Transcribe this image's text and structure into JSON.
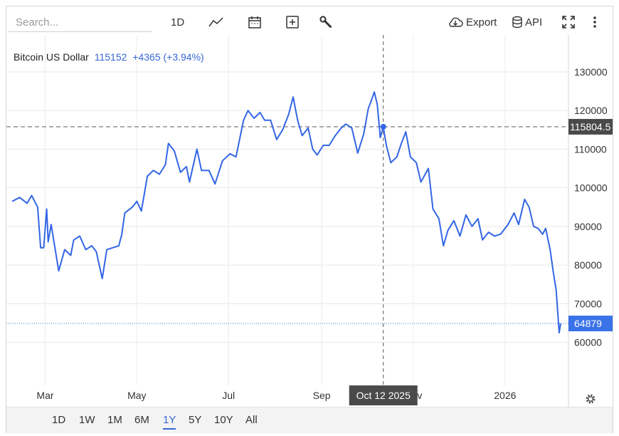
{
  "toolbar": {
    "search_placeholder": "Search...",
    "interval_label": "1D",
    "export_label": "Export",
    "api_label": "API"
  },
  "legend": {
    "name": "Bitcoin US Dollar",
    "price": "115152",
    "change": "+4365 (+3.94%)"
  },
  "crosshair": {
    "date_label": "Oct 12 2025",
    "price_label": "115804.5"
  },
  "last_price_label": "64879",
  "range_buttons": [
    {
      "label": "1D",
      "active": false
    },
    {
      "label": "1W",
      "active": false
    },
    {
      "label": "1M",
      "active": false
    },
    {
      "label": "6M",
      "active": false
    },
    {
      "label": "1Y",
      "active": true
    },
    {
      "label": "5Y",
      "active": false
    },
    {
      "label": "10Y",
      "active": false
    },
    {
      "label": "All",
      "active": false
    }
  ],
  "colors": {
    "line": "#3366e6",
    "crosshair_label_bg": "#4a4a4a",
    "last_price_bg": "#3a72e8"
  },
  "chart_data": {
    "type": "line",
    "title": "",
    "series": [
      {
        "name": "Bitcoin US Dollar",
        "points": [
          [
            "2025-02-07",
            96500
          ],
          [
            "2025-02-12",
            97500
          ],
          [
            "2025-02-17",
            96000
          ],
          [
            "2025-02-20",
            98000
          ],
          [
            "2025-02-24",
            95000
          ],
          [
            "2025-02-26",
            84500
          ],
          [
            "2025-02-28",
            84500
          ],
          [
            "2025-03-02",
            94500
          ],
          [
            "2025-03-03",
            86000
          ],
          [
            "2025-03-05",
            90500
          ],
          [
            "2025-03-10",
            78500
          ],
          [
            "2025-03-14",
            84000
          ],
          [
            "2025-03-18",
            82500
          ],
          [
            "2025-03-20",
            86500
          ],
          [
            "2025-03-24",
            87500
          ],
          [
            "2025-03-28",
            84000
          ],
          [
            "2025-04-01",
            85000
          ],
          [
            "2025-04-04",
            83500
          ],
          [
            "2025-04-08",
            76500
          ],
          [
            "2025-04-11",
            84000
          ],
          [
            "2025-04-15",
            84500
          ],
          [
            "2025-04-19",
            85000
          ],
          [
            "2025-04-21",
            88000
          ],
          [
            "2025-04-23",
            93500
          ],
          [
            "2025-04-28",
            95000
          ],
          [
            "2025-05-01",
            96500
          ],
          [
            "2025-05-04",
            94000
          ],
          [
            "2025-05-08",
            103000
          ],
          [
            "2025-05-12",
            104500
          ],
          [
            "2025-05-16",
            103500
          ],
          [
            "2025-05-20",
            106000
          ],
          [
            "2025-05-22",
            111500
          ],
          [
            "2025-05-26",
            109500
          ],
          [
            "2025-05-30",
            104000
          ],
          [
            "2025-06-03",
            105500
          ],
          [
            "2025-06-05",
            101500
          ],
          [
            "2025-06-10",
            110000
          ],
          [
            "2025-06-13",
            104500
          ],
          [
            "2025-06-18",
            104500
          ],
          [
            "2025-06-22",
            101000
          ],
          [
            "2025-06-27",
            107000
          ],
          [
            "2025-07-02",
            108800
          ],
          [
            "2025-07-06",
            108000
          ],
          [
            "2025-07-11",
            117500
          ],
          [
            "2025-07-14",
            120000
          ],
          [
            "2025-07-18",
            118000
          ],
          [
            "2025-07-22",
            119500
          ],
          [
            "2025-07-25",
            117500
          ],
          [
            "2025-07-29",
            117500
          ],
          [
            "2025-08-02",
            112500
          ],
          [
            "2025-08-06",
            115000
          ],
          [
            "2025-08-10",
            119000
          ],
          [
            "2025-08-13",
            123500
          ],
          [
            "2025-08-16",
            117500
          ],
          [
            "2025-08-19",
            113500
          ],
          [
            "2025-08-23",
            115500
          ],
          [
            "2025-08-26",
            110000
          ],
          [
            "2025-08-29",
            108500
          ],
          [
            "2025-09-02",
            111000
          ],
          [
            "2025-09-06",
            111000
          ],
          [
            "2025-09-10",
            113500
          ],
          [
            "2025-09-14",
            115500
          ],
          [
            "2025-09-17",
            116500
          ],
          [
            "2025-09-21",
            115500
          ],
          [
            "2025-09-25",
            109000
          ],
          [
            "2025-09-29",
            114000
          ],
          [
            "2025-10-02",
            120500
          ],
          [
            "2025-10-04",
            122500
          ],
          [
            "2025-10-06",
            124800
          ],
          [
            "2025-10-08",
            121500
          ],
          [
            "2025-10-10",
            113000
          ],
          [
            "2025-10-12",
            115804.5
          ],
          [
            "2025-10-14",
            111000
          ],
          [
            "2025-10-17",
            106500
          ],
          [
            "2025-10-21",
            108000
          ],
          [
            "2025-10-24",
            111500
          ],
          [
            "2025-10-27",
            114500
          ],
          [
            "2025-10-30",
            108000
          ],
          [
            "2025-11-03",
            106500
          ],
          [
            "2025-11-06",
            101500
          ],
          [
            "2025-11-11",
            105000
          ],
          [
            "2025-11-14",
            94500
          ],
          [
            "2025-11-18",
            92000
          ],
          [
            "2025-11-21",
            85000
          ],
          [
            "2025-11-24",
            89000
          ],
          [
            "2025-11-28",
            91500
          ],
          [
            "2025-12-02",
            87500
          ],
          [
            "2025-12-06",
            93000
          ],
          [
            "2025-12-10",
            90000
          ],
          [
            "2025-12-14",
            92000
          ],
          [
            "2025-12-17",
            86500
          ],
          [
            "2025-12-21",
            88500
          ],
          [
            "2025-12-25",
            87500
          ],
          [
            "2025-12-29",
            88000
          ],
          [
            "2026-01-03",
            90500
          ],
          [
            "2026-01-07",
            93500
          ],
          [
            "2026-01-10",
            90500
          ],
          [
            "2026-01-14",
            97000
          ],
          [
            "2026-01-17",
            95000
          ],
          [
            "2026-01-20",
            90000
          ],
          [
            "2026-01-23",
            89500
          ],
          [
            "2026-01-26",
            88000
          ],
          [
            "2026-01-28",
            89500
          ],
          [
            "2026-01-31",
            84000
          ],
          [
            "2026-02-02",
            78500
          ],
          [
            "2026-02-04",
            73500
          ],
          [
            "2026-02-06",
            62500
          ],
          [
            "2026-02-07",
            64879
          ]
        ]
      }
    ],
    "x_ticks": [
      "Mar",
      "May",
      "Jul",
      "Sep",
      "Nov",
      "2026"
    ],
    "x_range": [
      "2025-02-07",
      "2026-02-07"
    ],
    "y_ticks": [
      60000,
      70000,
      80000,
      90000,
      100000,
      110000,
      120000,
      130000
    ],
    "ylim": [
      47000,
      137000
    ],
    "crosshair": {
      "x": "2025-10-12",
      "y": 115804.5
    },
    "last_value": 64879,
    "grid": true,
    "legend_position": "top-left",
    "y_axis_side": "right"
  }
}
